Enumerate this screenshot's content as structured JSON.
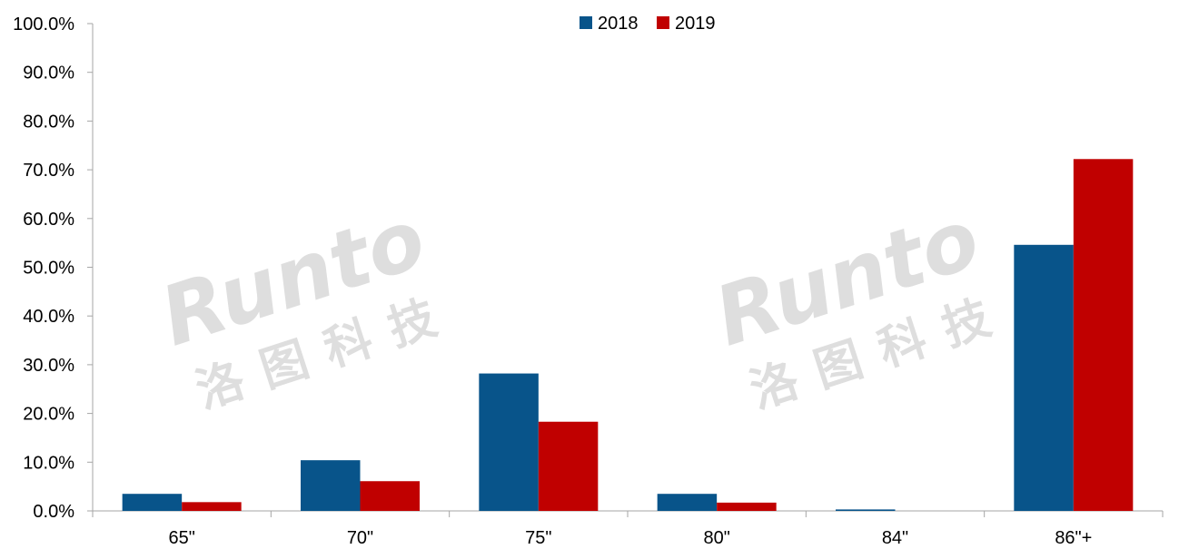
{
  "chart_data": {
    "type": "bar",
    "categories": [
      "65\"",
      "70\"",
      "75\"",
      "80\"",
      "84\"",
      "86\"+"
    ],
    "series": [
      {
        "name": "2018",
        "color": "#08548A",
        "values": [
          3.5,
          10.4,
          28.2,
          3.5,
          0.3,
          54.6
        ]
      },
      {
        "name": "2019",
        "color": "#C00000",
        "values": [
          1.8,
          6.1,
          18.3,
          1.7,
          0.0,
          72.2
        ]
      }
    ],
    "ylim": [
      0,
      100
    ],
    "yticks": [
      "0.0%",
      "10.0%",
      "20.0%",
      "30.0%",
      "40.0%",
      "50.0%",
      "60.0%",
      "70.0%",
      "80.0%",
      "90.0%",
      "100.0%"
    ],
    "y_tick_values": [
      0,
      10,
      20,
      30,
      40,
      50,
      60,
      70,
      80,
      90,
      100
    ],
    "title": "",
    "xlabel": "",
    "ylabel": "",
    "grid": false,
    "legend_position": "top-center"
  },
  "watermark": {
    "logo_text": "Runto",
    "cn_text": "洛图科技"
  }
}
